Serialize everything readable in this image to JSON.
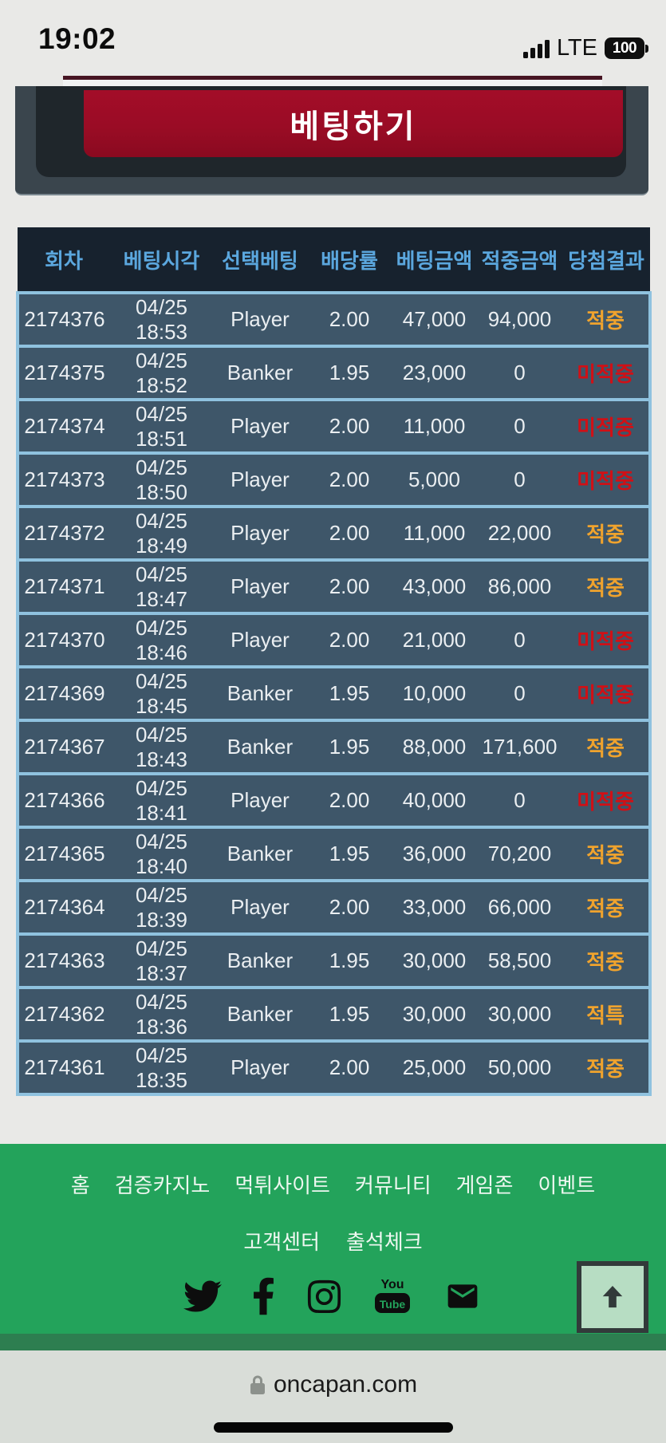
{
  "status_bar": {
    "time": "19:02",
    "network": "LTE",
    "battery_level": "100"
  },
  "bet_panel": {
    "button_label": "베팅하기"
  },
  "history_table": {
    "headers": [
      "회차",
      "베팅시각",
      "선택베팅",
      "배당률",
      "베팅금액",
      "적중금액",
      "당첨결과"
    ],
    "column_keys": [
      "round",
      "time",
      "pick",
      "odds",
      "bet",
      "win",
      "result"
    ],
    "rows": [
      {
        "round": "2174376",
        "time": "04/25 18:53",
        "pick": "Player",
        "odds": "2.00",
        "bet": "47,000",
        "win": "94,000",
        "result": "적중",
        "result_type": "win"
      },
      {
        "round": "2174375",
        "time": "04/25 18:52",
        "pick": "Banker",
        "odds": "1.95",
        "bet": "23,000",
        "win": "0",
        "result": "미적중",
        "result_type": "lose"
      },
      {
        "round": "2174374",
        "time": "04/25 18:51",
        "pick": "Player",
        "odds": "2.00",
        "bet": "11,000",
        "win": "0",
        "result": "미적중",
        "result_type": "lose"
      },
      {
        "round": "2174373",
        "time": "04/25 18:50",
        "pick": "Player",
        "odds": "2.00",
        "bet": "5,000",
        "win": "0",
        "result": "미적중",
        "result_type": "lose"
      },
      {
        "round": "2174372",
        "time": "04/25 18:49",
        "pick": "Player",
        "odds": "2.00",
        "bet": "11,000",
        "win": "22,000",
        "result": "적중",
        "result_type": "win"
      },
      {
        "round": "2174371",
        "time": "04/25 18:47",
        "pick": "Player",
        "odds": "2.00",
        "bet": "43,000",
        "win": "86,000",
        "result": "적중",
        "result_type": "win"
      },
      {
        "round": "2174370",
        "time": "04/25 18:46",
        "pick": "Player",
        "odds": "2.00",
        "bet": "21,000",
        "win": "0",
        "result": "미적중",
        "result_type": "lose"
      },
      {
        "round": "2174369",
        "time": "04/25 18:45",
        "pick": "Banker",
        "odds": "1.95",
        "bet": "10,000",
        "win": "0",
        "result": "미적중",
        "result_type": "lose"
      },
      {
        "round": "2174367",
        "time": "04/25 18:43",
        "pick": "Banker",
        "odds": "1.95",
        "bet": "88,000",
        "win": "171,600",
        "result": "적중",
        "result_type": "win"
      },
      {
        "round": "2174366",
        "time": "04/25 18:41",
        "pick": "Player",
        "odds": "2.00",
        "bet": "40,000",
        "win": "0",
        "result": "미적중",
        "result_type": "lose"
      },
      {
        "round": "2174365",
        "time": "04/25 18:40",
        "pick": "Banker",
        "odds": "1.95",
        "bet": "36,000",
        "win": "70,200",
        "result": "적중",
        "result_type": "win"
      },
      {
        "round": "2174364",
        "time": "04/25 18:39",
        "pick": "Player",
        "odds": "2.00",
        "bet": "33,000",
        "win": "66,000",
        "result": "적중",
        "result_type": "win"
      },
      {
        "round": "2174363",
        "time": "04/25 18:37",
        "pick": "Banker",
        "odds": "1.95",
        "bet": "30,000",
        "win": "58,500",
        "result": "적중",
        "result_type": "win"
      },
      {
        "round": "2174362",
        "time": "04/25 18:36",
        "pick": "Banker",
        "odds": "1.95",
        "bet": "30,000",
        "win": "30,000",
        "result": "적특",
        "result_type": "win"
      },
      {
        "round": "2174361",
        "time": "04/25 18:35",
        "pick": "Player",
        "odds": "2.00",
        "bet": "25,000",
        "win": "50,000",
        "result": "적중",
        "result_type": "win"
      }
    ]
  },
  "footer": {
    "nav_row1": [
      "홈",
      "검증카지노",
      "먹튀사이트",
      "커뮤니티",
      "게임존",
      "이벤트"
    ],
    "nav_row2": [
      "고객센터",
      "출석체크"
    ],
    "social_icons": [
      "twitter-icon",
      "facebook-icon",
      "instagram-icon",
      "youtube-icon",
      "email-icon"
    ],
    "youtube_icon_text": {
      "top": "You",
      "bottom": "Tube"
    },
    "scroll_top_icon": "arrow-up-icon"
  },
  "browser_bar": {
    "url": "oncapan.com",
    "lock_icon": "lock-icon"
  },
  "colors": {
    "page_bg": "#e9e9e7",
    "panel_slate": "#3a454d",
    "panel_inner": "#1f262b",
    "button_red_top": "#a30d28",
    "button_red_bottom": "#8a0a20",
    "table_header_bg": "#17222e",
    "table_header_text": "#5ba7de",
    "row_bg": "#3e5669",
    "row_border": "#8fc2df",
    "cell_text": "#eaeef1",
    "result_win": "#f0a32d",
    "result_lose": "#d01016",
    "footer_green": "#23a35b",
    "footer_strip_green": "#2d7e50",
    "browser_bar_bg": "#d9ddd8",
    "scroll_button_bg": "#b7ddc3"
  }
}
